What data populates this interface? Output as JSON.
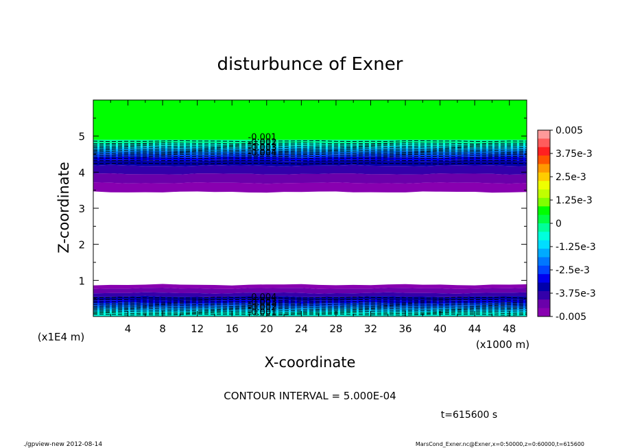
{
  "chart_data": {
    "type": "heatmap",
    "title": "disturbunce of Exner",
    "xlabel": "X-coordinate",
    "ylabel": "Z-coordinate",
    "x_unit_label": "(x1000 m)",
    "y_unit_label": "(x1E4 m)",
    "xlim": [
      0,
      50
    ],
    "ylim": [
      0,
      6
    ],
    "x_ticks": [
      4,
      8,
      12,
      16,
      20,
      24,
      28,
      32,
      36,
      40,
      44,
      48
    ],
    "y_ticks": [
      1,
      2,
      3,
      4,
      5
    ],
    "colorbar": {
      "min": -0.005,
      "max": 0.005,
      "tick_labels": [
        "0.005",
        "3.75e-3",
        "2.5e-3",
        "1.25e-3",
        "0",
        "-1.25e-3",
        "-2.5e-3",
        "-3.75e-3",
        "-0.005"
      ],
      "colors": [
        "#ff9a9a",
        "#ff5c5c",
        "#ff2020",
        "#ff5500",
        "#ff9900",
        "#ffcc00",
        "#eeff00",
        "#c0ff00",
        "#80ff00",
        "#00ff00",
        "#00ff44",
        "#00ff99",
        "#00ffdd",
        "#00ddff",
        "#00aaff",
        "#0077ff",
        "#0044ff",
        "#0000ee",
        "#0000aa",
        "#3300aa",
        "#6a00aa",
        "#8800b0"
      ]
    },
    "upper_layer": {
      "green_above": 4.9,
      "bottom": 3.45,
      "bands": [
        [
          4.9,
          4.8,
          "#00ff99"
        ],
        [
          4.8,
          4.72,
          "#00ffdd"
        ],
        [
          4.72,
          4.65,
          "#00ddff"
        ],
        [
          4.65,
          4.58,
          "#00aaff"
        ],
        [
          4.58,
          4.5,
          "#0077ff"
        ],
        [
          4.5,
          4.42,
          "#0044ff"
        ],
        [
          4.42,
          4.32,
          "#0000ee"
        ],
        [
          4.32,
          4.18,
          "#0000aa"
        ],
        [
          4.18,
          3.95,
          "#3300aa"
        ],
        [
          3.95,
          3.7,
          "#6a00aa"
        ],
        [
          3.7,
          3.45,
          "#8800b0"
        ]
      ]
    },
    "lower_layer": {
      "bands": [
        [
          0.88,
          0.78,
          "#8800b0"
        ],
        [
          0.78,
          0.65,
          "#6a00aa"
        ],
        [
          0.65,
          0.55,
          "#3300aa"
        ],
        [
          0.55,
          0.45,
          "#0000aa"
        ],
        [
          0.45,
          0.37,
          "#0000ee"
        ],
        [
          0.37,
          0.3,
          "#0044ff"
        ],
        [
          0.3,
          0.24,
          "#0077ff"
        ],
        [
          0.24,
          0.18,
          "#00aaff"
        ],
        [
          0.18,
          0.12,
          "#00ddff"
        ],
        [
          0.12,
          0.0,
          "#00ffdd"
        ]
      ]
    },
    "contour_labels_upper": [
      "-0.001",
      "-0.002",
      "-0.003",
      "-0.004"
    ],
    "contour_labels_lower": [
      "-0.004",
      "-0.003",
      "-0.002",
      "-0.001"
    ]
  },
  "contour_interval": "CONTOUR INTERVAL = 5.000E-04",
  "time_label": "t=615600 s",
  "footer_left": "./gpview-new   2012-08-14",
  "footer_right": "MarsCond_Exner.nc@Exner,x=0:50000,z=0:60000,t=615600"
}
